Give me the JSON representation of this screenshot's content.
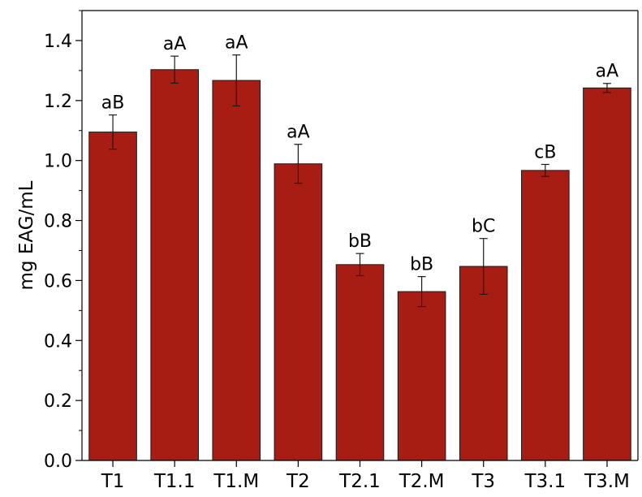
{
  "chart_data": {
    "type": "bar",
    "title": "",
    "xlabel": "",
    "ylabel": "mg EAG/mL",
    "ylim": [
      0,
      1.5
    ],
    "yticks": [
      "0.0",
      "0.2",
      "0.4",
      "0.6",
      "0.8",
      "1.0",
      "1.2",
      "1.4"
    ],
    "grid": false,
    "legend": "none",
    "bar_color": "#a71d13",
    "bar_edge_color": "#1a1a1a",
    "categories": [
      "T1",
      "T1.1",
      "T1.M",
      "T2",
      "T2.1",
      "T2.M",
      "T3",
      "T3.1",
      "T3.M"
    ],
    "values": [
      1.095,
      1.303,
      1.267,
      0.989,
      0.653,
      0.563,
      0.647,
      0.967,
      1.242
    ],
    "errors": [
      0.057,
      0.045,
      0.085,
      0.065,
      0.037,
      0.05,
      0.093,
      0.02,
      0.015
    ],
    "letters": [
      "aB",
      "aA",
      "aA",
      "aA",
      "bB",
      "bB",
      "bC",
      "cB",
      "aA"
    ]
  }
}
